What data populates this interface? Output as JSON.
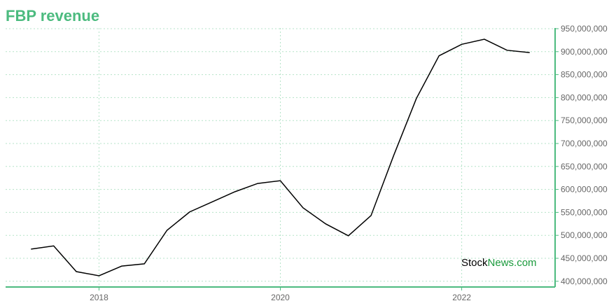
{
  "chart_data": {
    "type": "line",
    "title": "FBP revenue",
    "x": [
      2017.25,
      2017.5,
      2017.75,
      2018,
      2018.25,
      2018.5,
      2018.75,
      2019,
      2019.25,
      2019.5,
      2019.75,
      2020,
      2020.25,
      2020.5,
      2020.75,
      2021,
      2021.25,
      2021.5,
      2021.75,
      2022,
      2022.25,
      2022.5,
      2022.75
    ],
    "series": [
      {
        "name": "FBP revenue",
        "color": "#000000",
        "values": [
          470000000,
          477000000,
          421000000,
          412000000,
          433000000,
          438000000,
          511000000,
          551000000,
          573000000,
          595000000,
          613000000,
          619000000,
          560000000,
          525000000,
          499000000,
          543000000,
          674000000,
          798000000,
          891000000,
          916000000,
          927000000,
          903000000,
          898000000
        ]
      }
    ],
    "xlim": [
      2016.97,
      2023.03
    ],
    "xticks": [
      2018,
      2020,
      2022
    ],
    "ylim": [
      387500000,
      951500000
    ],
    "yticks": [
      {
        "value": 400000000,
        "label": "400,000,000"
      },
      {
        "value": 450000000,
        "label": "450,000,000"
      },
      {
        "value": 500000000,
        "label": "500,000,000"
      },
      {
        "value": 550000000,
        "label": "550,000,000"
      },
      {
        "value": 600000000,
        "label": "600,000,000"
      },
      {
        "value": 650000000,
        "label": "650,000,000"
      },
      {
        "value": 700000000,
        "label": "700,000,000"
      },
      {
        "value": 750000000,
        "label": "750,000,000"
      },
      {
        "value": 800000000,
        "label": "800,000,000"
      },
      {
        "value": 850000000,
        "label": "850,000,000"
      },
      {
        "value": 900000000,
        "label": "900,000,000"
      },
      {
        "value": 950000000,
        "label": "950,000,000"
      }
    ],
    "grid": true,
    "accent_color": "#4cbb7f",
    "watermark": [
      "Stock",
      "News.com"
    ]
  }
}
